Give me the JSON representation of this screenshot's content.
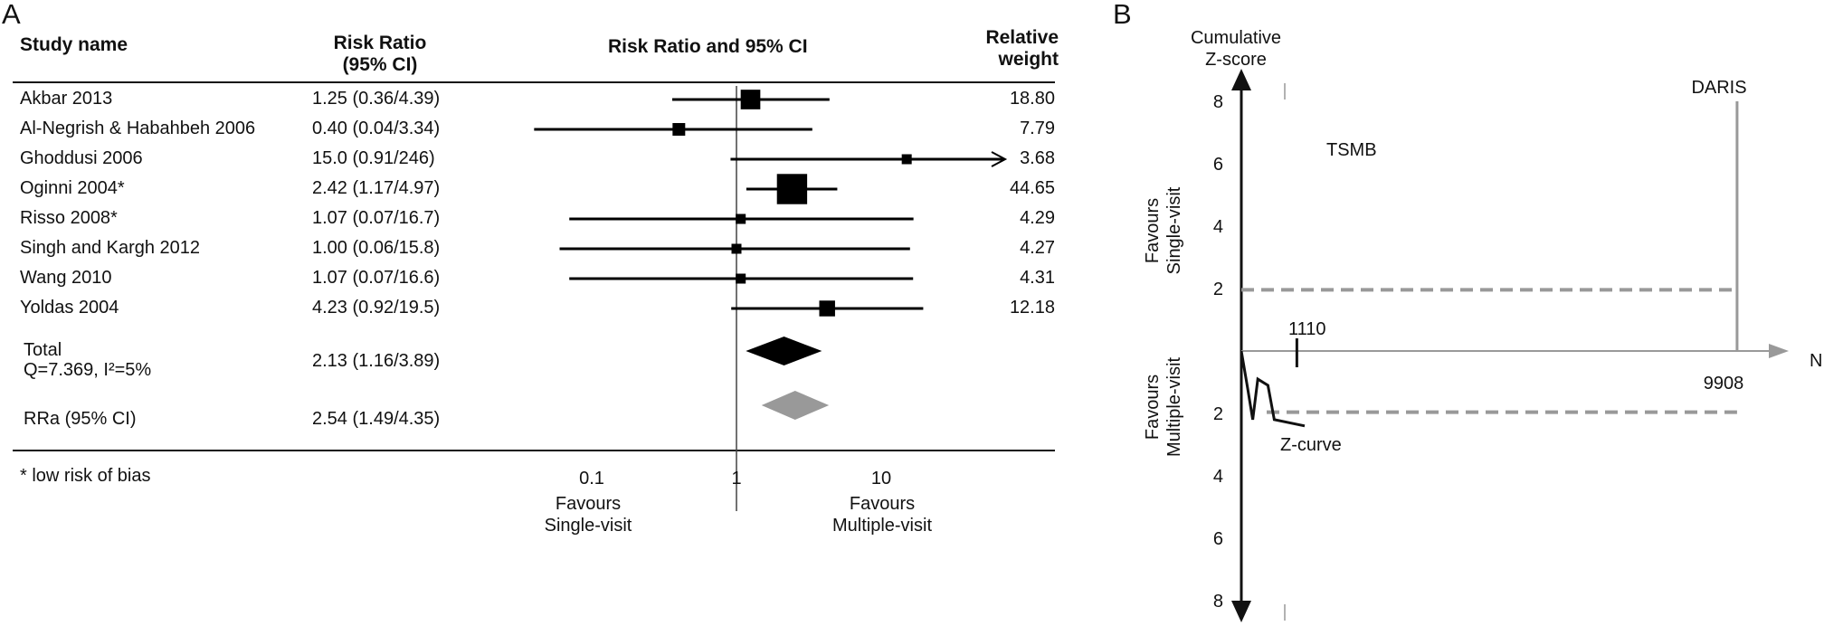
{
  "panel_a": {
    "letter": "A",
    "headers": {
      "study": "Study name",
      "rr_line1": "Risk Ratio",
      "rr_line2": "(95% CI)",
      "plot": "Risk Ratio and 95% CI",
      "weight_line1": "Relative",
      "weight_line2": "weight"
    },
    "rows": [
      {
        "study": "Akbar 2013",
        "rr_text": "1.25 (0.36/4.39)",
        "weight": "18.80"
      },
      {
        "study": "Al-Negrish & Habahbeh 2006",
        "rr_text": "0.40 (0.04/3.34)",
        "weight": "7.79"
      },
      {
        "study": "Ghoddusi 2006",
        "rr_text": "15.0 (0.91/246)",
        "weight": "3.68"
      },
      {
        "study": "Oginni 2004*",
        "rr_text": "2.42 (1.17/4.97)",
        "weight": "44.65"
      },
      {
        "study": "Risso 2008*",
        "rr_text": "1.07 (0.07/16.7)",
        "weight": "4.29"
      },
      {
        "study": "Singh and Kargh 2012",
        "rr_text": "1.00 (0.06/15.8)",
        "weight": "4.27"
      },
      {
        "study": "Wang 2010",
        "rr_text": "1.07 (0.07/16.6)",
        "weight": "4.31"
      },
      {
        "study": "Yoldas 2004",
        "rr_text": "4.23 (0.92/19.5)",
        "weight": "12.18"
      }
    ],
    "total": {
      "label1": "Total",
      "label2": "Q=7.369, I²=5%",
      "rr_text": "2.13 (1.16/3.89)"
    },
    "rra": {
      "label": "RRa (95% CI)",
      "rr_text": "2.54 (1.49/4.35)"
    },
    "footnote": "* low risk of bias",
    "axis_ticks": [
      "0.1",
      "1",
      "10"
    ],
    "favours_left_1": "Favours",
    "favours_left_2": "Single-visit",
    "favours_right_1": "Favours",
    "favours_right_2": "Multiple-visit"
  },
  "panel_b": {
    "letter": "B",
    "y_title_1": "Cumulative",
    "y_title_2": "Z-score",
    "ticks_up": [
      "8",
      "6",
      "4",
      "2"
    ],
    "ticks_down": [
      "2",
      "4",
      "6",
      "8"
    ],
    "label_daris": "DARIS",
    "label_tsmb": "TSMB",
    "label_1110": "1110",
    "label_9908": "9908",
    "label_n": "N",
    "label_zcurve": "Z-curve",
    "fav_single_1": "Favours",
    "fav_single_2": "Single-visit",
    "fav_multi_1": "Favours",
    "fav_multi_2": "Multiple-visit"
  },
  "chart_data": [
    {
      "type": "forest",
      "x_scale": "log",
      "x_ticks": [
        0.1,
        1,
        10
      ],
      "studies": [
        {
          "name": "Akbar 2013",
          "rr": 1.25,
          "lo": 0.36,
          "hi": 4.39,
          "weight": 18.8
        },
        {
          "name": "Al-Negrish & Habahbeh 2006",
          "rr": 0.4,
          "lo": 0.04,
          "hi": 3.34,
          "weight": 7.79
        },
        {
          "name": "Ghoddusi 2006",
          "rr": 15.0,
          "lo": 0.91,
          "hi": 246,
          "weight": 3.68,
          "arrow_right": true
        },
        {
          "name": "Oginni 2004*",
          "rr": 2.42,
          "lo": 1.17,
          "hi": 4.97,
          "weight": 44.65
        },
        {
          "name": "Risso 2008*",
          "rr": 1.07,
          "lo": 0.07,
          "hi": 16.7,
          "weight": 4.29
        },
        {
          "name": "Singh and Kargh 2012",
          "rr": 1.0,
          "lo": 0.06,
          "hi": 15.8,
          "weight": 4.27
        },
        {
          "name": "Wang 2010",
          "rr": 1.07,
          "lo": 0.07,
          "hi": 16.6,
          "weight": 4.31
        },
        {
          "name": "Yoldas 2004",
          "rr": 4.23,
          "lo": 0.92,
          "hi": 19.5,
          "weight": 12.18
        }
      ],
      "pooled": [
        {
          "name": "Total",
          "rr": 2.13,
          "lo": 1.16,
          "hi": 3.89,
          "color": "#000000"
        },
        {
          "name": "RRa (95% CI)",
          "rr": 2.54,
          "lo": 1.49,
          "hi": 4.35,
          "color": "#999999"
        }
      ]
    },
    {
      "type": "line",
      "y_ticks": [
        -8,
        -6,
        -4,
        -2,
        2,
        4,
        6,
        8
      ],
      "ylim": [
        -8.5,
        8.5
      ],
      "xlim": [
        0,
        10000
      ],
      "conventional_boundary": 1.96,
      "daris": 9908,
      "marker_1110": 1110,
      "z_curve": [
        [
          0,
          0
        ],
        [
          100,
          -1.2
        ],
        [
          180,
          -2.2
        ],
        [
          260,
          -0.9
        ],
        [
          420,
          -1.1
        ],
        [
          520,
          -2.2
        ],
        [
          1000,
          -2.4
        ]
      ],
      "colors": {
        "axis": "#111111",
        "boundary": "#999999"
      }
    }
  ]
}
